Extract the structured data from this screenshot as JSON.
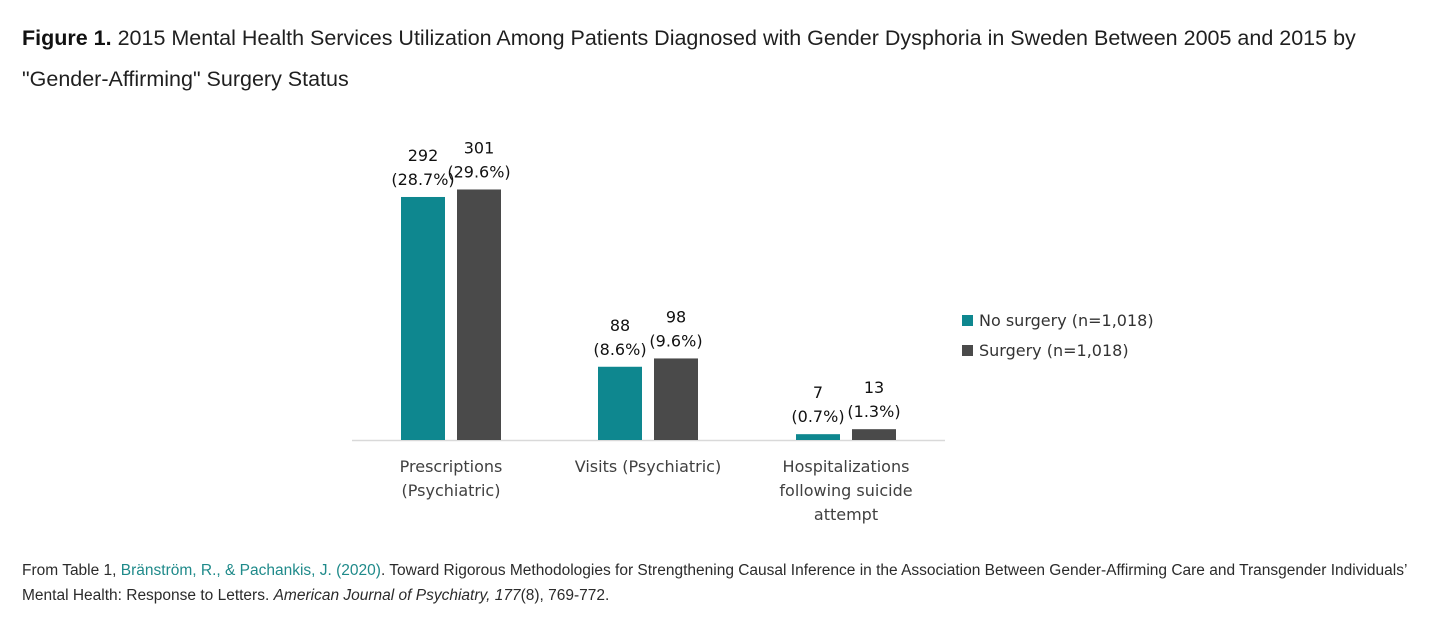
{
  "figure": {
    "title_lead": "Figure 1.",
    "title_rest": " 2015 Mental Health Services Utilization Among Patients Diagnosed with Gender Dysphoria in Sweden Between 2005 and 2015 by \"Gender-Affirming\" Surgery Status"
  },
  "chart_data": {
    "type": "bar",
    "title": "2015 Mental Health Services Utilization Among Patients Diagnosed with Gender Dysphoria in Sweden Between 2005 and 2015 by \"Gender-Affirming\" Surgery Status",
    "categories": [
      [
        "Prescriptions",
        "(Psychiatric)"
      ],
      [
        "Visits (Psychiatric)"
      ],
      [
        "Hospitalizations",
        "following suicide",
        "attempt"
      ]
    ],
    "series": [
      {
        "name": "No surgery (n=1,018)",
        "color": "#0e878f",
        "values": [
          292,
          88,
          7
        ],
        "labels": [
          [
            "292",
            "(28.7%)"
          ],
          [
            "88",
            "(8.6%)"
          ],
          [
            "7",
            "(0.7%)"
          ]
        ]
      },
      {
        "name": "Surgery (n=1,018)",
        "color": "#4a4a4a",
        "values": [
          301,
          98,
          13
        ],
        "labels": [
          [
            "301",
            "(29.6%)"
          ],
          [
            "98",
            "(9.6%)"
          ],
          [
            "13",
            "(1.3%)"
          ]
        ]
      }
    ],
    "xlabel": "",
    "ylabel": "",
    "ylim": [
      0,
      310
    ],
    "grid": false,
    "legend": "right"
  },
  "source": {
    "prefix": "From Table 1,  ",
    "link_text": "Bränström, R., & Pachankis, J. (2020)",
    "middle": ". Toward Rigorous Methodologies for Strengthening Causal Inference in the Association Between Gender-Affirming Care and Transgender Individuals’ Mental Health: Response to Letters. ",
    "journal": "American Journal of Psychiatry, 177",
    "suffix": "(8), 769-772."
  }
}
